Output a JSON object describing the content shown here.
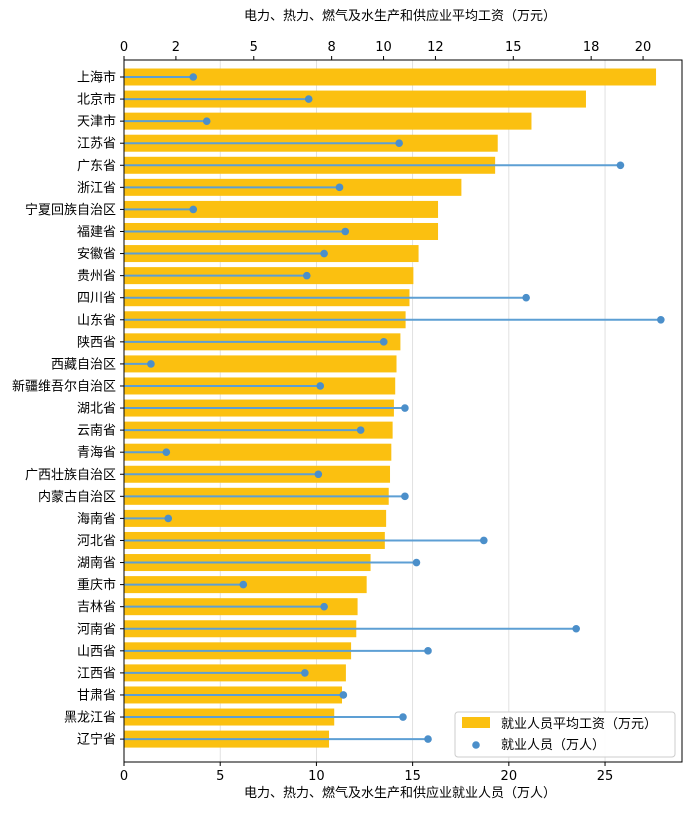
{
  "chart_data": {
    "type": "bar",
    "title_top": "电力、热力、燃气及水生产和供应业平均工资（万元）",
    "xlabel_bottom": "电力、热力、燃气及水生产和供应业就业人员（万人）",
    "top_axis": {
      "range": [
        0,
        21.5
      ],
      "ticks": [
        0,
        2,
        5,
        8,
        10,
        12,
        15,
        18,
        20
      ],
      "tick_labels": [
        "0",
        "2",
        "5",
        "8",
        "10",
        "12",
        "15",
        "18",
        "20"
      ]
    },
    "bottom_axis": {
      "range": [
        0,
        29
      ],
      "ticks": [
        0,
        5,
        10,
        15,
        20,
        25
      ],
      "tick_labels": [
        "0",
        "5",
        "10",
        "15",
        "20",
        "25"
      ]
    },
    "categories": [
      "上海市",
      "北京市",
      "天津市",
      "江苏省",
      "广东省",
      "浙江省",
      "宁夏回族自治区",
      "福建省",
      "安徽省",
      "贵州省",
      "四川省",
      "山东省",
      "陕西省",
      "西藏自治区",
      "新疆维吾尔自治区",
      "湖北省",
      "云南省",
      "青海省",
      "广西壮族自治区",
      "内蒙古自治区",
      "海南省",
      "河北省",
      "湖南省",
      "重庆市",
      "吉林省",
      "河南省",
      "山西省",
      "江西省",
      "甘肃省",
      "黑龙江省",
      "辽宁省"
    ],
    "series": [
      {
        "name": "就业人员平均工资（万元）",
        "type": "bar",
        "color": "#fbc010",
        "axis": "top",
        "values": [
          20.5,
          17.8,
          15.7,
          14.4,
          14.3,
          13.0,
          12.1,
          12.1,
          11.35,
          11.15,
          11.0,
          10.85,
          10.65,
          10.5,
          10.45,
          10.4,
          10.35,
          10.3,
          10.25,
          10.2,
          10.1,
          10.05,
          9.5,
          9.35,
          9.0,
          8.95,
          8.75,
          8.55,
          8.4,
          8.1,
          7.9
        ]
      },
      {
        "name": "就业人员（万人）",
        "type": "lollipop",
        "color": "#4b8fca",
        "axis": "bottom",
        "values": [
          3.6,
          9.6,
          4.3,
          14.3,
          25.8,
          11.2,
          3.6,
          11.5,
          10.4,
          9.5,
          20.9,
          27.9,
          13.5,
          1.4,
          10.2,
          14.6,
          12.3,
          2.2,
          10.1,
          14.6,
          2.3,
          18.7,
          15.2,
          6.2,
          10.4,
          23.5,
          15.8,
          9.4,
          11.4,
          14.5,
          15.8
        ]
      }
    ],
    "legend": {
      "position": "bottom-right",
      "bar_label": "就业人员平均工资（万元）",
      "dot_label": "就业人员（万人）"
    }
  }
}
